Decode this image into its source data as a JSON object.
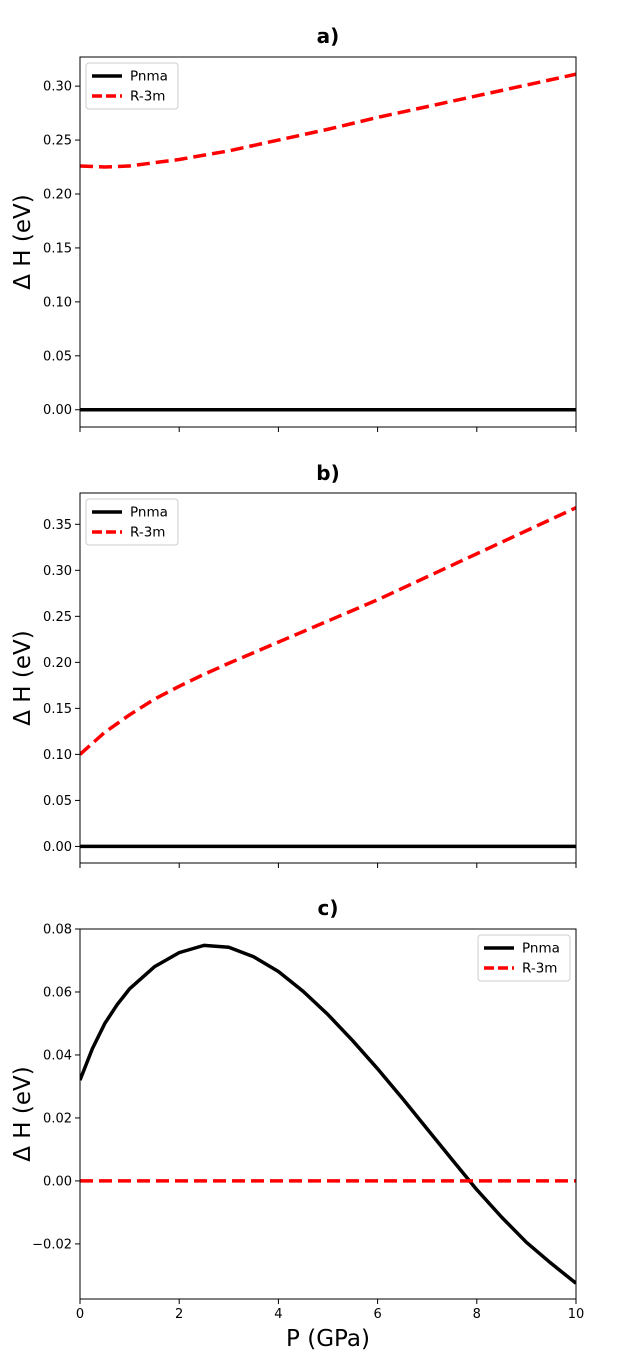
{
  "chart_data": [
    {
      "type": "line",
      "title": "a)",
      "xlabel": "",
      "ylabel": "Δ H (eV)",
      "xlim": [
        0,
        10
      ],
      "ylim": [
        -0.016,
        0.327
      ],
      "yticks": [
        "0.00",
        "0.05",
        "0.10",
        "0.15",
        "0.20",
        "0.25",
        "0.30"
      ],
      "ytick_values": [
        0.0,
        0.05,
        0.1,
        0.15,
        0.2,
        0.25,
        0.3
      ],
      "xtick_values": [
        0,
        2,
        4,
        6,
        8,
        10
      ],
      "xticks": [],
      "grid": false,
      "legend_position": "top-left",
      "series": [
        {
          "name": "Pnma",
          "color": "#000000",
          "style": "solid",
          "x": [
            0,
            10
          ],
          "y": [
            0.0,
            0.0
          ]
        },
        {
          "name": "R-3m",
          "color": "#ff0000",
          "style": "dashed",
          "x": [
            0,
            0.5,
            1,
            1.5,
            2,
            2.5,
            3,
            4,
            5,
            6,
            7,
            8,
            9,
            10
          ],
          "y": [
            0.226,
            0.225,
            0.226,
            0.229,
            0.232,
            0.236,
            0.24,
            0.25,
            0.26,
            0.271,
            0.281,
            0.291,
            0.301,
            0.311
          ]
        }
      ]
    },
    {
      "type": "line",
      "title": "b)",
      "xlabel": "",
      "ylabel": "Δ H (eV)",
      "xlim": [
        0,
        10
      ],
      "ylim": [
        -0.018,
        0.384
      ],
      "yticks": [
        "0.00",
        "0.05",
        "0.10",
        "0.15",
        "0.20",
        "0.25",
        "0.30",
        "0.35"
      ],
      "ytick_values": [
        0.0,
        0.05,
        0.1,
        0.15,
        0.2,
        0.25,
        0.3,
        0.35
      ],
      "xtick_values": [
        0,
        2,
        4,
        6,
        8,
        10
      ],
      "xticks": [],
      "grid": false,
      "legend_position": "top-left",
      "series": [
        {
          "name": "Pnma",
          "color": "#000000",
          "style": "solid",
          "x": [
            0,
            10
          ],
          "y": [
            0.0,
            0.0
          ]
        },
        {
          "name": "R-3m",
          "color": "#ff0000",
          "style": "dashed",
          "x": [
            0,
            0.5,
            1,
            1.5,
            2,
            2.5,
            3,
            4,
            5,
            6,
            7,
            8,
            9,
            10
          ],
          "y": [
            0.1,
            0.124,
            0.143,
            0.16,
            0.174,
            0.187,
            0.199,
            0.222,
            0.245,
            0.268,
            0.293,
            0.318,
            0.343,
            0.368
          ]
        }
      ]
    },
    {
      "type": "line",
      "title": "c)",
      "xlabel": "P (GPa)",
      "ylabel": "Δ H (eV)",
      "xlim": [
        0,
        10
      ],
      "ylim": [
        -0.0375,
        0.08
      ],
      "yticks": [
        "−0.02",
        "0.00",
        "0.02",
        "0.04",
        "0.06",
        "0.08"
      ],
      "ytick_values": [
        -0.02,
        0.0,
        0.02,
        0.04,
        0.06,
        0.08
      ],
      "xtick_values": [
        0,
        2,
        4,
        6,
        8,
        10
      ],
      "xticks": [
        "0",
        "2",
        "4",
        "6",
        "8",
        "10"
      ],
      "grid": false,
      "legend_position": "top-right",
      "series": [
        {
          "name": "Pnma",
          "color": "#000000",
          "style": "solid",
          "x": [
            0,
            0.25,
            0.5,
            0.75,
            1,
            1.5,
            2,
            2.5,
            3,
            3.5,
            4,
            4.5,
            5,
            5.5,
            6,
            6.5,
            7,
            7.5,
            8,
            8.5,
            9,
            9.5,
            10
          ],
          "y": [
            0.032,
            0.042,
            0.05,
            0.056,
            0.061,
            0.068,
            0.0725,
            0.0748,
            0.0742,
            0.0712,
            0.0665,
            0.0602,
            0.0528,
            0.0445,
            0.0356,
            0.0262,
            0.0165,
            0.0068,
            -0.0028,
            -0.0115,
            -0.0195,
            -0.0262,
            -0.0325
          ]
        },
        {
          "name": "R-3m",
          "color": "#ff0000",
          "style": "dashed",
          "x": [
            0,
            10
          ],
          "y": [
            0.0,
            0.0
          ]
        }
      ]
    }
  ]
}
